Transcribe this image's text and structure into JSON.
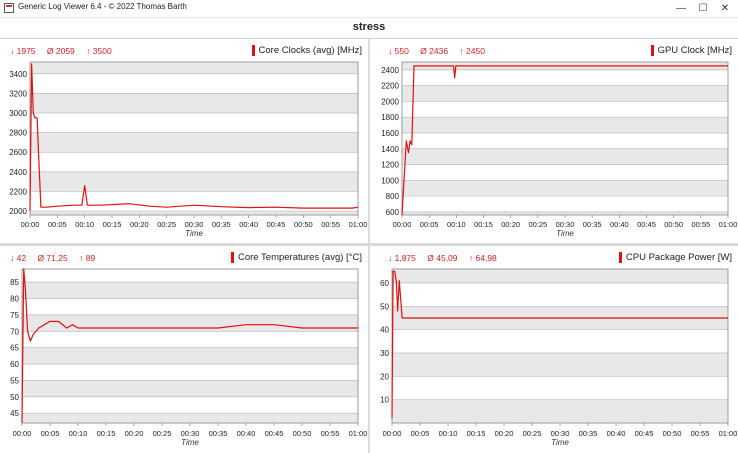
{
  "window": {
    "title": "Generic Log Viewer 6.4 - © 2022 Thomas Barth",
    "minimize": "—",
    "maximize": "☐",
    "close": "✕"
  },
  "page": {
    "title": "stress"
  },
  "panels": [
    {
      "id": "core-clocks",
      "title": "Core Clocks (avg) [MHz]",
      "stats": {
        "min": "↓ 1975",
        "avg": "Ø 2059",
        "max": "↑ 3500"
      },
      "xlabel": "Time",
      "yticks": [
        "2000",
        "2200",
        "2400",
        "2600",
        "2800",
        "3000",
        "3200",
        "3400"
      ],
      "xticks": [
        "00:00",
        "00:05",
        "00:10",
        "00:15",
        "00:20",
        "00:25",
        "00:30",
        "00:35",
        "00:40",
        "00:45",
        "00:50",
        "00:55",
        "01:00"
      ]
    },
    {
      "id": "gpu-clock",
      "title": "GPU Clock [MHz]",
      "stats": {
        "min": "↓ 550",
        "avg": "Ø 2436",
        "max": "↑ 2450"
      },
      "xlabel": "Time",
      "yticks": [
        "600",
        "800",
        "1000",
        "1200",
        "1400",
        "1600",
        "1800",
        "2000",
        "2200",
        "2400"
      ],
      "xticks": [
        "00:00",
        "00:05",
        "00:10",
        "00:15",
        "00:20",
        "00:25",
        "00:30",
        "00:35",
        "00:40",
        "00:45",
        "00:50",
        "00:55",
        "01:00"
      ]
    },
    {
      "id": "core-temps",
      "title": "Core Temperatures (avg) [°C]",
      "stats": {
        "min": "↓ 42",
        "avg": "Ø 71,25",
        "max": "↑ 89"
      },
      "xlabel": "Time",
      "yticks": [
        "45",
        "50",
        "55",
        "60",
        "65",
        "70",
        "75",
        "80",
        "85"
      ],
      "xticks": [
        "00:00",
        "00:05",
        "00:10",
        "00:15",
        "00:20",
        "00:25",
        "00:30",
        "00:35",
        "00:40",
        "00:45",
        "00:50",
        "00:55",
        "01:00"
      ]
    },
    {
      "id": "cpu-power",
      "title": "CPU Package Power [W]",
      "stats": {
        "min": "↓ 1,875",
        "avg": "Ø 45,09",
        "max": "↑ 64,98"
      },
      "xlabel": "Time",
      "yticks": [
        "10",
        "20",
        "30",
        "40",
        "50",
        "60"
      ],
      "xticks": [
        "00:00",
        "00:05",
        "00:10",
        "00:15",
        "00:20",
        "00:25",
        "00:30",
        "00:35",
        "00:40",
        "00:45",
        "00:50",
        "00:55",
        "01:00"
      ]
    }
  ],
  "chart_data": [
    {
      "type": "line",
      "title": "Core Clocks (avg) [MHz]",
      "xlabel": "Time",
      "ylabel": "MHz",
      "xlim": [
        0,
        60
      ],
      "ylim": [
        1950,
        3500
      ],
      "series": [
        {
          "name": "Core Clocks (avg) [MHz]",
          "color": "#e01010",
          "x": [
            0,
            0.3,
            0.6,
            0.9,
            1.3,
            1.6,
            2.0,
            2.5,
            3,
            5,
            8,
            9.5,
            10,
            10.5,
            13,
            18,
            22,
            25,
            30,
            35,
            40,
            45,
            50,
            55,
            59,
            60
          ],
          "y": [
            2000,
            3500,
            3000,
            2950,
            2950,
            2550,
            2040,
            2040,
            2040,
            2050,
            2060,
            2060,
            2260,
            2060,
            2060,
            2075,
            2050,
            2040,
            2060,
            2045,
            2035,
            2040,
            2030,
            2030,
            2030,
            2040
          ]
        }
      ]
    },
    {
      "type": "line",
      "title": "GPU Clock [MHz]",
      "xlabel": "Time",
      "ylabel": "MHz",
      "xlim": [
        0,
        60
      ],
      "ylim": [
        550,
        2500
      ],
      "series": [
        {
          "name": "GPU Clock [MHz]",
          "color": "#e01010",
          "x": [
            0,
            0.8,
            1.2,
            1.5,
            1.8,
            2.2,
            2.6,
            9.5,
            9.7,
            9.9,
            60
          ],
          "y": [
            550,
            1500,
            1350,
            1500,
            1450,
            2450,
            2450,
            2450,
            2300,
            2450,
            2450
          ]
        }
      ]
    },
    {
      "type": "line",
      "title": "Core Temperatures (avg) [°C]",
      "xlabel": "Time",
      "ylabel": "°C",
      "xlim": [
        0,
        60
      ],
      "ylim": [
        42,
        89
      ],
      "series": [
        {
          "name": "Core Temperatures (avg) [°C]",
          "color": "#e01010",
          "x": [
            0,
            0.3,
            0.6,
            1,
            1.5,
            2,
            3,
            4,
            5,
            6.5,
            8,
            9,
            10,
            14,
            20,
            25,
            30,
            35,
            40,
            45,
            50,
            55,
            60
          ],
          "y": [
            42,
            89,
            83,
            70,
            67,
            69,
            71,
            72,
            73,
            73,
            71,
            72,
            71,
            71,
            71,
            71,
            71,
            71,
            72,
            72,
            71,
            71,
            71
          ]
        }
      ]
    },
    {
      "type": "line",
      "title": "CPU Package Power [W]",
      "xlabel": "Time",
      "ylabel": "W",
      "xlim": [
        0,
        60
      ],
      "ylim": [
        1.875,
        65
      ],
      "series": [
        {
          "name": "CPU Package Power [W]",
          "color": "#e01010",
          "x": [
            0,
            0.2,
            0.5,
            0.8,
            1.0,
            1.3,
            1.8,
            2.5,
            10,
            20,
            30,
            40,
            50,
            60
          ],
          "y": [
            2,
            65,
            65,
            60,
            48,
            61,
            45,
            45,
            45,
            45,
            45,
            45,
            45,
            45
          ]
        }
      ]
    }
  ]
}
